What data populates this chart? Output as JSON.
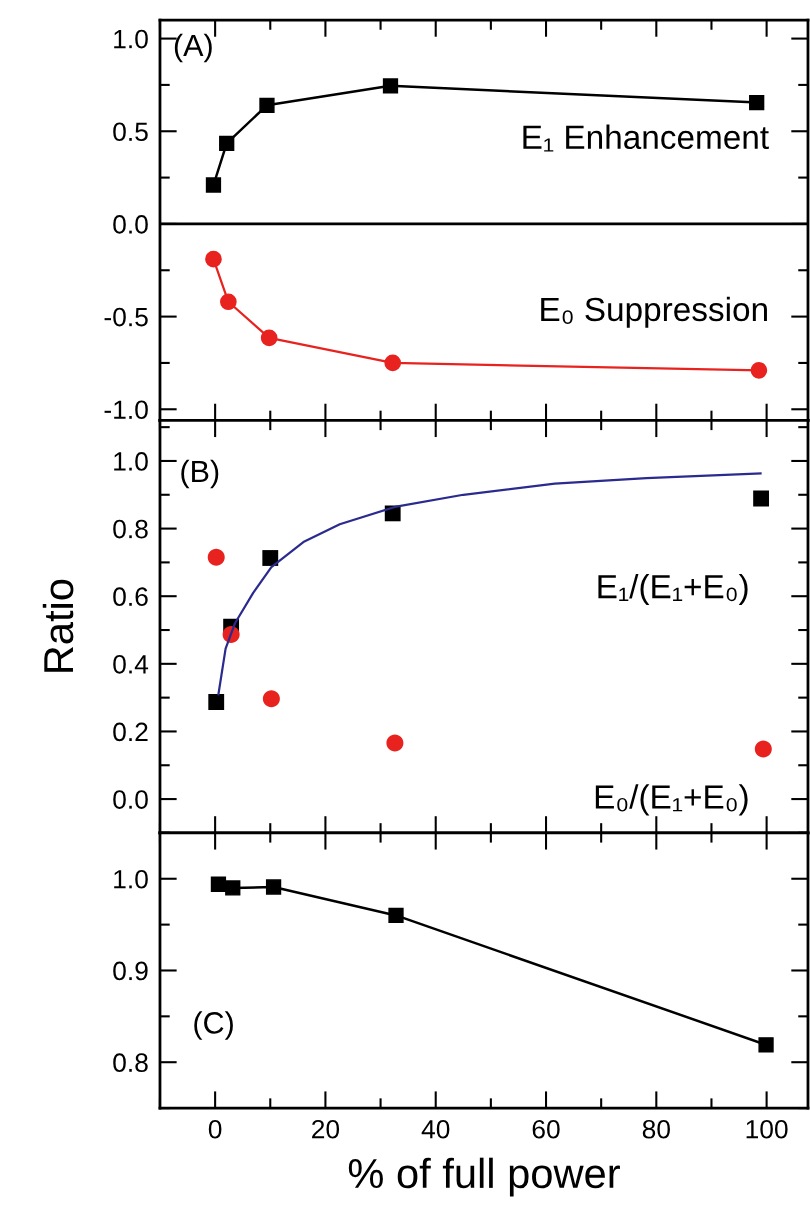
{
  "chart_data": [
    {
      "type": "line",
      "xlim": [
        -10,
        107.5
      ],
      "ylim": [
        -1.06,
        1.1
      ],
      "yticks": [
        {
          "value": -1.0,
          "label": "-1.0"
        },
        {
          "value": -0.5,
          "label": "-0.5"
        },
        {
          "value": 0.0,
          "label": "0.0"
        },
        {
          "value": 0.5,
          "label": "0.5"
        },
        {
          "value": 1.0,
          "label": "1.0"
        }
      ],
      "xticks": [
        0,
        20,
        40,
        60,
        80,
        100
      ],
      "tick_labels": "y",
      "grid": false,
      "legend": false,
      "ref_lines": [
        {
          "axis": "y",
          "value": 0,
          "color": "#000000"
        }
      ],
      "annotations": [
        "(A)",
        "E₁ Enhancement",
        "E₀ Suppression"
      ],
      "series": [
        {
          "color": "#000000",
          "marker": "square",
          "x": [
            -0.3,
            2.1,
            9.4,
            31.8,
            98.2
          ],
          "values": [
            0.21,
            0.435,
            0.64,
            0.745,
            0.655
          ]
        },
        {
          "color": "#e8231f",
          "marker": "circle",
          "x": [
            -0.3,
            2.4,
            9.8,
            32.2,
            98.6
          ],
          "values": [
            -0.19,
            -0.42,
            -0.615,
            -0.75,
            -0.79
          ]
        }
      ]
    },
    {
      "type": "scatter",
      "xlim": [
        -10,
        107.5
      ],
      "ylim": [
        -0.1,
        1.12
      ],
      "yticks": [
        {
          "value": 0.0,
          "label": "0.0"
        },
        {
          "value": 0.2,
          "label": "0.2"
        },
        {
          "value": 0.4,
          "label": "0.4"
        },
        {
          "value": 0.6,
          "label": "0.6"
        },
        {
          "value": 0.8,
          "label": "0.8"
        },
        {
          "value": 1.0,
          "label": "1.0"
        }
      ],
      "xticks": [
        0,
        20,
        40,
        60,
        80,
        100
      ],
      "tick_labels": "y",
      "grid": false,
      "legend": false,
      "ylabel": "Ratio",
      "annotations": [
        "(B)",
        "E₁/(E₁+E₀)",
        "E₀/(E₁+E₀)"
      ],
      "series": [
        {
          "type": "line",
          "color": "#2b2b8f",
          "marker": "none",
          "x": [
            0.6,
            1.9,
            3.6,
            6.9,
            10.2,
            16.0,
            22.6,
            32.6,
            45.0,
            61.6,
            78.2,
            98.9
          ],
          "values": [
            0.31,
            0.445,
            0.52,
            0.61,
            0.686,
            0.76,
            0.813,
            0.864,
            0.9,
            0.933,
            0.949,
            0.963
          ]
        },
        {
          "color": "#000000",
          "marker": "square",
          "x": [
            0.2,
            2.9,
            10.0,
            32.2,
            99.0
          ],
          "values": [
            0.287,
            0.51,
            0.713,
            0.845,
            0.889
          ]
        },
        {
          "color": "#e8231f",
          "marker": "circle",
          "x": [
            0.2,
            2.9,
            10.2,
            32.6,
            99.4
          ],
          "values": [
            0.715,
            0.487,
            0.297,
            0.166,
            0.148
          ]
        }
      ]
    },
    {
      "type": "line",
      "xlim": [
        -10,
        107.5
      ],
      "ylim": [
        0.75,
        1.05
      ],
      "yticks": [
        {
          "value": 0.8,
          "label": "0.8"
        },
        {
          "value": 0.9,
          "label": "0.9"
        },
        {
          "value": 1.0,
          "label": "1.0"
        }
      ],
      "xticks": [
        0,
        20,
        40,
        60,
        80,
        100
      ],
      "grid": false,
      "legend": false,
      "xlabel": "% of full power",
      "annotations": [
        "(C)"
      ],
      "series": [
        {
          "color": "#000000",
          "marker": "square",
          "x": [
            0.6,
            3.2,
            10.6,
            32.8,
            99.9
          ],
          "values": [
            0.994,
            0.99,
            0.991,
            0.96,
            0.819
          ]
        }
      ]
    }
  ]
}
